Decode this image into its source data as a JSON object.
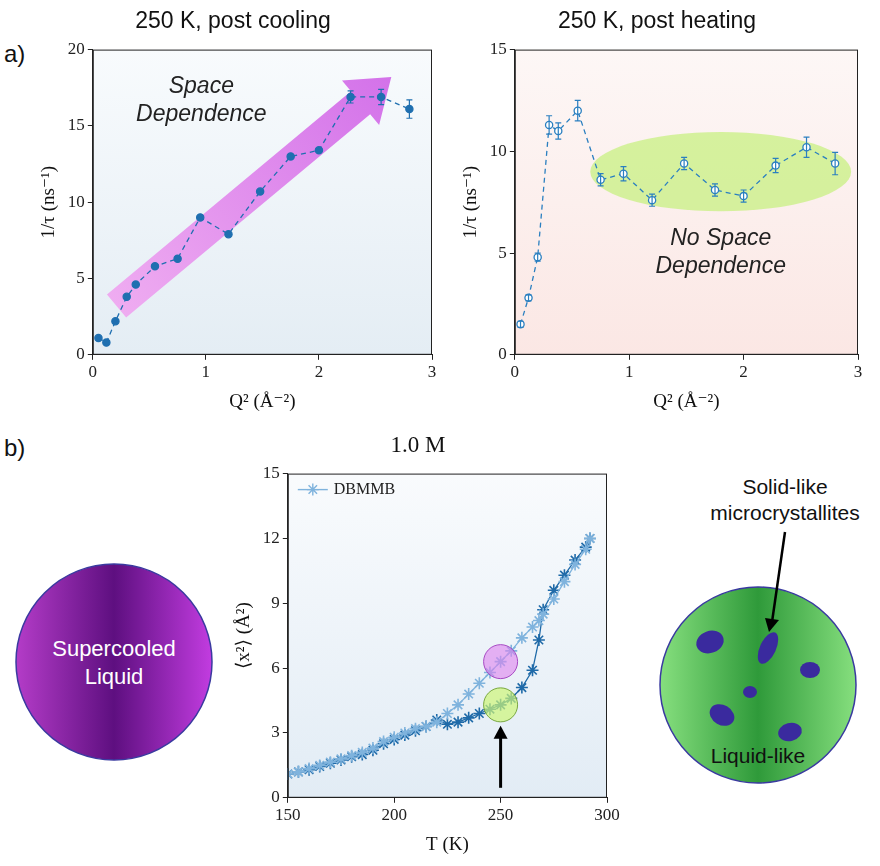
{
  "chart_data": [
    {
      "type": "line",
      "panel": "a)",
      "title": "250 K, post cooling",
      "x_label": "Q² (Å⁻²)",
      "y_label": "1/τ (ns⁻¹)",
      "x": [
        0.05,
        0.12,
        0.2,
        0.3,
        0.38,
        0.55,
        0.75,
        0.95,
        1.2,
        1.48,
        1.75,
        2.0,
        2.28,
        2.55,
        2.8
      ],
      "series": [
        {
          "color": "#1f6fb0",
          "marker": "circle",
          "line_style": "dashed",
          "values": [
            1.1,
            0.8,
            2.2,
            3.8,
            4.6,
            5.8,
            6.3,
            9.0,
            7.9,
            10.7,
            13.0,
            13.4,
            16.9,
            16.9,
            16.1
          ],
          "errors": [
            null,
            null,
            null,
            null,
            null,
            null,
            null,
            null,
            null,
            null,
            null,
            null,
            0.4,
            0.5,
            0.6
          ]
        }
      ],
      "xlim": [
        0,
        3
      ],
      "xticks": [
        0,
        1,
        2,
        3
      ],
      "ylim": [
        0,
        20
      ],
      "yticks": [
        0,
        5,
        10,
        15,
        20
      ],
      "grid": false,
      "annotations": [
        "Space Dependence"
      ]
    },
    {
      "type": "line",
      "title": "250 K, post heating",
      "x_label": "Q² (Å⁻²)",
      "y_label": "1/τ (ns⁻¹)",
      "x": [
        0.05,
        0.12,
        0.2,
        0.3,
        0.38,
        0.55,
        0.75,
        0.95,
        1.2,
        1.48,
        1.75,
        2.0,
        2.28,
        2.55,
        2.8
      ],
      "series": [
        {
          "color": "#2a7fc0",
          "marker": "open circle",
          "line_style": "dashed",
          "values": [
            1.5,
            2.8,
            4.8,
            11.3,
            11.0,
            12.0,
            8.6,
            8.9,
            7.6,
            9.4,
            8.1,
            7.8,
            9.3,
            10.2,
            9.4
          ],
          "errors": [
            0.15,
            0.15,
            0.2,
            0.45,
            0.4,
            0.5,
            0.3,
            0.35,
            0.3,
            0.3,
            0.3,
            0.3,
            0.35,
            0.5,
            0.55
          ]
        }
      ],
      "xlim": [
        0,
        3
      ],
      "xticks": [
        0,
        1,
        2,
        3
      ],
      "ylim": [
        0,
        15
      ],
      "yticks": [
        0,
        5,
        10,
        15
      ],
      "grid": false,
      "annotations": [
        "No Space Dependence"
      ]
    },
    {
      "type": "line",
      "panel": "b)",
      "title": "1.0 M",
      "x_label": "T (K)",
      "y_label": "⟨x²⟩ (Å²)",
      "x": [
        150,
        155,
        160,
        165,
        170,
        175,
        180,
        185,
        190,
        195,
        200,
        205,
        210,
        215,
        220,
        225,
        230,
        235,
        240,
        245,
        250,
        255,
        260,
        265,
        268,
        270,
        275,
        280,
        285,
        290,
        292
      ],
      "series": [
        {
          "name": "DBMMB",
          "color": "#7fb3dd",
          "marker": "star",
          "line_style": "solid",
          "values": [
            1.1,
            1.2,
            1.35,
            1.5,
            1.65,
            1.8,
            1.95,
            2.1,
            2.3,
            2.6,
            2.8,
            3.0,
            3.2,
            3.3,
            3.5,
            3.9,
            4.3,
            4.8,
            5.3,
            5.8,
            6.3,
            6.8,
            7.4,
            7.9,
            8.2,
            8.5,
            9.2,
            10.0,
            10.8,
            11.5,
            12.0
          ]
        },
        {
          "color": "#1f6aa8",
          "marker": "star",
          "line_style": "solid",
          "values": [
            1.1,
            1.2,
            1.3,
            1.45,
            1.6,
            1.75,
            1.9,
            2.0,
            2.2,
            2.5,
            2.7,
            2.9,
            3.1,
            3.3,
            3.6,
            3.4,
            3.5,
            3.7,
            3.9,
            4.1,
            4.3,
            4.6,
            5.1,
            5.9,
            7.3,
            8.7,
            9.6,
            10.3,
            11.0,
            11.6,
            12.0
          ]
        }
      ],
      "xlim": [
        150,
        300
      ],
      "xticks": [
        150,
        200,
        250,
        300
      ],
      "ylim": [
        0,
        15
      ],
      "yticks": [
        0,
        3,
        6,
        9,
        12,
        15
      ],
      "grid": false,
      "legend": "upper left",
      "annotations": [
        {
          "text": "Supercooled Liquid",
          "x": 250,
          "series": 0
        },
        {
          "text": "Liquid-like",
          "x": 250,
          "series": 1
        },
        {
          "text": "Solid-like microcrystallites"
        }
      ]
    }
  ]
}
